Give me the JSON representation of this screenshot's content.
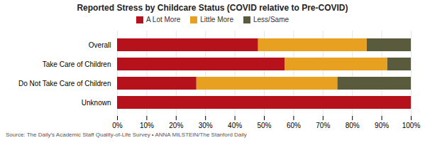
{
  "chart_data": {
    "type": "bar",
    "orientation": "horizontal",
    "stacked": true,
    "title": "Reported Stress by Childcare Status (COVID relative to Pre-COVID)",
    "caption": "Source: The Daily’s Academic Staff Quality-of-Life Survey • ANNA MILSTEIN/The Stanford Daily",
    "categories": [
      "Overall",
      "Take Care of Children",
      "Do Not Take Care of Children",
      "Unknown"
    ],
    "series": [
      {
        "name": "A Lot More",
        "color": "#b5121b",
        "values": [
          48,
          57,
          27,
          100
        ]
      },
      {
        "name": "Little More",
        "color": "#e8a020",
        "values": [
          37,
          35,
          48,
          0
        ]
      },
      {
        "name": "Less/Same",
        "color": "#5a5a3c",
        "values": [
          15,
          8,
          25,
          0
        ]
      }
    ],
    "xlim": [
      0,
      100
    ],
    "xticks": [
      {
        "value": 0,
        "label": "0%"
      },
      {
        "value": 10,
        "label": "10%"
      },
      {
        "value": 20,
        "label": "20%"
      },
      {
        "value": 30,
        "label": "30%"
      },
      {
        "value": 40,
        "label": "40%"
      },
      {
        "value": 50,
        "label": "50%"
      },
      {
        "value": 60,
        "label": "60%"
      },
      {
        "value": 70,
        "label": "70%"
      },
      {
        "value": 80,
        "label": "80%"
      },
      {
        "value": 90,
        "label": "90%"
      },
      {
        "value": 100,
        "label": "100%"
      }
    ],
    "grid": true,
    "legend": "top"
  }
}
